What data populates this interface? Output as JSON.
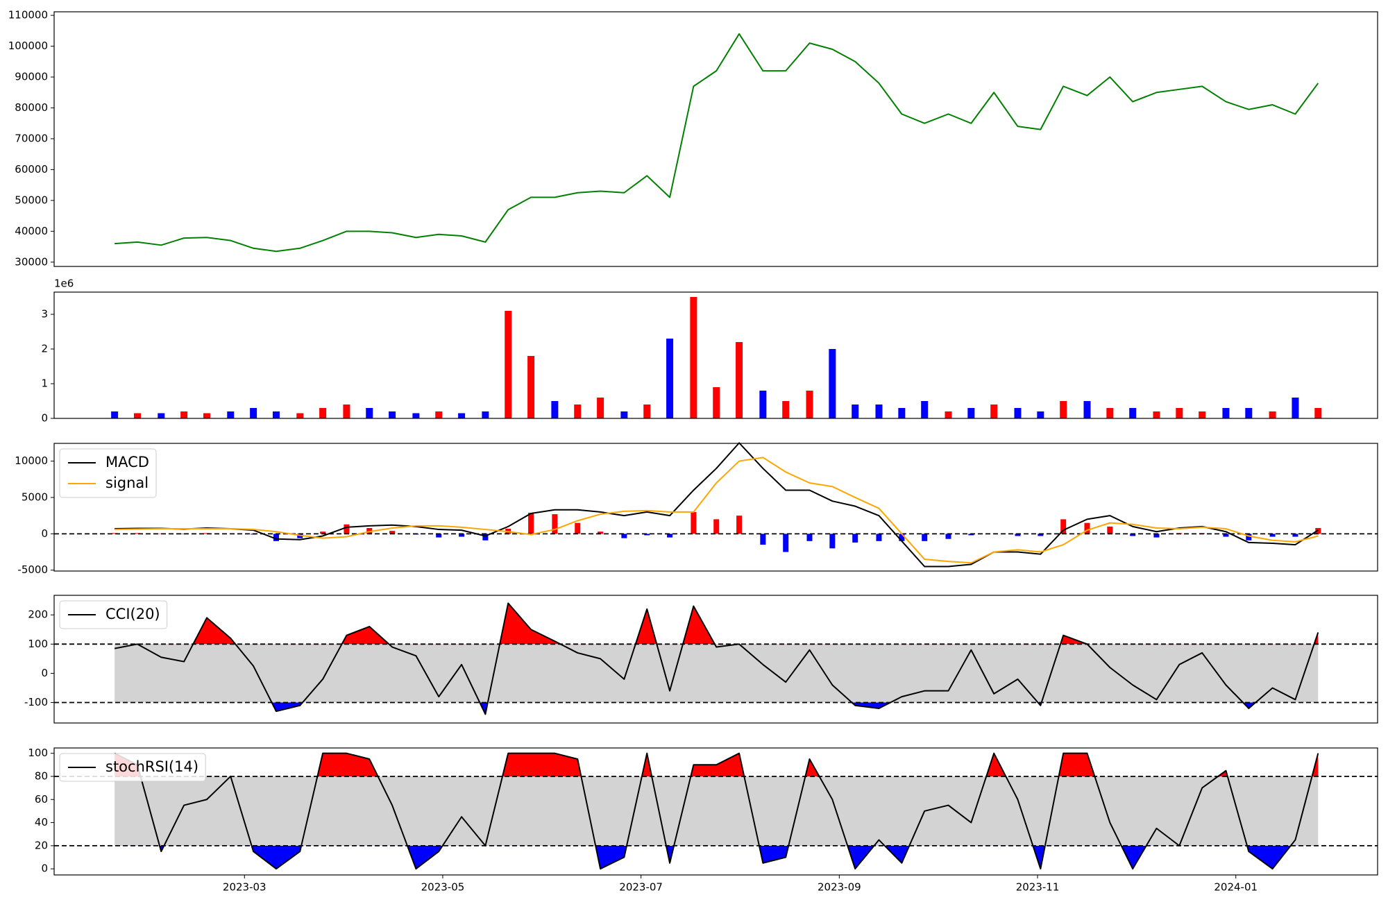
{
  "chart_data": [
    {
      "type": "line",
      "x": [
        0.69,
        0.92,
        1.16,
        1.39,
        1.62,
        1.86,
        2.09,
        2.32,
        2.56,
        2.79,
        3.03,
        3.26,
        3.49,
        3.73,
        3.96,
        4.19,
        4.43,
        4.66,
        4.89,
        5.13,
        5.36,
        5.59,
        5.83,
        6.06,
        6.29,
        6.53,
        6.76,
        6.99,
        7.23,
        7.46,
        7.7,
        7.93,
        8.16,
        8.4,
        8.63,
        8.86,
        9.1,
        9.33,
        9.56,
        9.8,
        10.03,
        10.26,
        10.5,
        10.73,
        10.96,
        11.2,
        11.43,
        11.66,
        11.9,
        12.13,
        12.37,
        12.6,
        12.83
      ],
      "xlim": [
        0.08,
        13.43
      ],
      "ylim": [
        28600,
        111150
      ],
      "yticks": [
        30000,
        40000,
        50000,
        60000,
        70000,
        80000,
        90000,
        100000,
        110000
      ],
      "series": [
        {
          "color": "#008000",
          "values": [
            36000,
            36500,
            35500,
            37800,
            38000,
            37000,
            34500,
            33500,
            34500,
            37000,
            40000,
            40000,
            39500,
            38000,
            39000,
            38500,
            36500,
            47000,
            51000,
            51000,
            52500,
            53000,
            52500,
            58000,
            51000,
            87000,
            92000,
            104000,
            92000,
            92000,
            101000,
            99000,
            95000,
            88000,
            78000,
            75000,
            78000,
            75000,
            85000,
            74000,
            73000,
            87000,
            84000,
            90000,
            82000,
            85000,
            86000,
            87000,
            82000,
            79500,
            81000,
            78000,
            88000
          ]
        }
      ]
    },
    {
      "type": "bar",
      "offset_label": "1e6",
      "ylim": [
        0,
        3640000
      ],
      "yticks": [
        0,
        {
          "value": 1000000,
          "label": "1"
        },
        {
          "value": 2000000,
          "label": "2"
        },
        {
          "value": 3000000,
          "label": "3"
        }
      ],
      "values": [
        200000,
        150000,
        150000,
        200000,
        150000,
        200000,
        300000,
        200000,
        150000,
        300000,
        400000,
        300000,
        200000,
        150000,
        200000,
        150000,
        200000,
        3100000,
        1800000,
        500000,
        400000,
        600000,
        200000,
        400000,
        2300000,
        3500000,
        900000,
        2200000,
        800000,
        500000,
        800000,
        2000000,
        400000,
        400000,
        300000,
        500000,
        200000,
        300000,
        400000,
        300000,
        200000,
        500000,
        500000,
        300000,
        300000,
        200000,
        300000,
        200000,
        300000,
        300000,
        200000,
        600000,
        300000
      ],
      "colors": [
        "blue",
        "red",
        "blue",
        "red",
        "red",
        "blue",
        "blue",
        "blue",
        "red",
        "red",
        "red",
        "blue",
        "blue",
        "blue",
        "red",
        "blue",
        "blue",
        "red",
        "red",
        "blue",
        "red",
        "red",
        "blue",
        "red",
        "blue",
        "red",
        "red",
        "red",
        "blue",
        "red",
        "red",
        "blue",
        "blue",
        "blue",
        "blue",
        "blue",
        "red",
        "blue",
        "red",
        "blue",
        "blue",
        "red",
        "blue",
        "red",
        "blue",
        "red",
        "red",
        "red",
        "blue",
        "blue",
        "red",
        "blue",
        "red"
      ]
    },
    {
      "type": "line",
      "legend": "upper left",
      "ylim": [
        -5120,
        12440
      ],
      "yticks": [
        -5000,
        0,
        5000,
        10000
      ],
      "levels": [
        0
      ],
      "histogram": {
        "pos_color": "red",
        "neg_color": "blue",
        "values": [
          100,
          100,
          50,
          -50,
          100,
          0,
          -100,
          -1000,
          -600,
          300,
          1300,
          800,
          400,
          -100,
          -500,
          -400,
          -900,
          700,
          2900,
          2700,
          1500,
          300,
          -600,
          -200,
          -500,
          3000,
          2000,
          2500,
          -1500,
          -2500,
          -1000,
          -2000,
          -1200,
          -1000,
          -1000,
          -1000,
          -700,
          -200,
          0,
          -300,
          -300,
          2000,
          1500,
          1000,
          -300,
          -500,
          100,
          100,
          -400,
          -900,
          -400,
          -400,
          800
        ]
      },
      "series": [
        {
          "name": "MACD",
          "color": "#000000",
          "values": [
            700,
            750,
            750,
            650,
            800,
            700,
            500,
            -700,
            -800,
            -300,
            900,
            1100,
            1200,
            1000,
            600,
            500,
            -300,
            1000,
            2800,
            3300,
            3300,
            3000,
            2500,
            3000,
            2500,
            6000,
            9000,
            12500,
            9000,
            6000,
            6000,
            4500,
            3800,
            2500,
            -1000,
            -4500,
            -4500,
            -4200,
            -2500,
            -2500,
            -2800,
            500,
            2000,
            2500,
            1000,
            300,
            800,
            1000,
            300,
            -1200,
            -1300,
            -1500,
            500
          ]
        },
        {
          "name": "signal",
          "color": "#ffa500",
          "values": [
            600,
            650,
            700,
            700,
            700,
            700,
            600,
            300,
            -200,
            -600,
            -400,
            300,
            800,
            1100,
            1100,
            900,
            600,
            300,
            -100,
            600,
            1800,
            2700,
            3100,
            3200,
            3000,
            3000,
            7000,
            10000,
            10500,
            8500,
            7000,
            6500,
            5000,
            3500,
            0,
            -3500,
            -3800,
            -4000,
            -2500,
            -2200,
            -2500,
            -1500,
            500,
            1500,
            1300,
            800,
            700,
            900,
            700,
            -300,
            -900,
            -1100,
            -300
          ]
        }
      ]
    },
    {
      "type": "oscillator",
      "legend": "upper left",
      "ylim": [
        -170,
        267
      ],
      "yticks": [
        -100,
        0,
        100,
        200
      ],
      "levels": [
        100,
        -100
      ],
      "band_color": "#d3d3d3",
      "upper_color": "red",
      "lower_color": "blue",
      "series": [
        {
          "name": "CCI(20)",
          "color": "#000000",
          "values": [
            85,
            100,
            55,
            40,
            190,
            120,
            25,
            -130,
            -110,
            -20,
            130,
            160,
            90,
            60,
            -80,
            30,
            -140,
            240,
            150,
            110,
            70,
            50,
            -20,
            220,
            -60,
            230,
            90,
            100,
            30,
            -30,
            80,
            -40,
            -110,
            -120,
            -80,
            -60,
            -60,
            80,
            -70,
            -20,
            -110,
            130,
            100,
            20,
            -40,
            -90,
            30,
            70,
            -40,
            -120,
            -50,
            -90,
            140
          ]
        }
      ]
    },
    {
      "type": "oscillator",
      "legend": "upper left",
      "ylim": [
        -5.3,
        104.6
      ],
      "yticks": [
        0,
        20,
        40,
        60,
        80,
        100
      ],
      "levels": [
        80,
        20
      ],
      "band_color": "#d3d3d3",
      "upper_color": "red",
      "lower_color": "blue",
      "xticks": [
        {
          "value": 2,
          "label": "2023-03"
        },
        {
          "value": 4,
          "label": "2023-05"
        },
        {
          "value": 6,
          "label": "2023-07"
        },
        {
          "value": 8,
          "label": "2023-09"
        },
        {
          "value": 10,
          "label": "2023-11"
        },
        {
          "value": 12,
          "label": "2024-01"
        }
      ],
      "series": [
        {
          "name": "stochRSI(14)",
          "color": "#000000",
          "values": [
            100,
            90,
            15,
            55,
            60,
            80,
            15,
            0,
            15,
            100,
            100,
            95,
            55,
            0,
            15,
            45,
            20,
            100,
            100,
            100,
            95,
            0,
            10,
            100,
            5,
            90,
            90,
            100,
            5,
            10,
            95,
            60,
            0,
            25,
            5,
            50,
            55,
            40,
            100,
            60,
            0,
            100,
            100,
            40,
            0,
            35,
            20,
            70,
            85,
            15,
            0,
            25,
            100
          ]
        }
      ]
    }
  ]
}
